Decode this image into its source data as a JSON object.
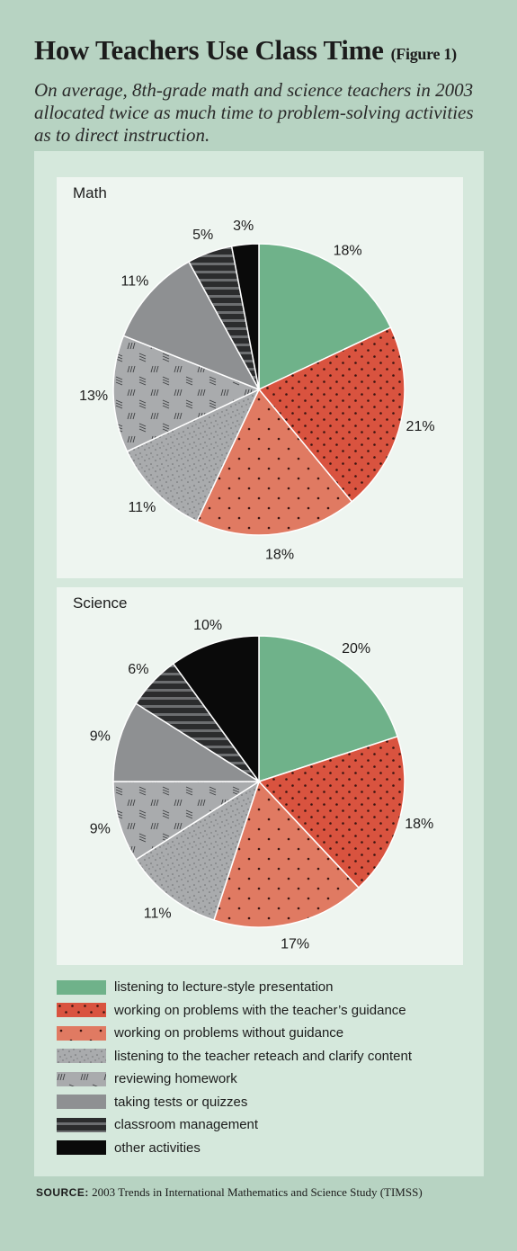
{
  "header": {
    "title": "How Teachers Use Class Time",
    "figure_label": "(Figure 1)",
    "subtitle": "On average, 8th-grade math and science teachers in 2003 allocated twice as much time to problem-solving activities as to direct instruction."
  },
  "colors": {
    "green": "#6fb28a",
    "red_dark": "#d9533f",
    "red_light": "#e07a62",
    "gray_light": "#a9abad",
    "gray_med": "#8e9092",
    "gray_dark": "#2f3132",
    "black": "#0a0a0a",
    "background": "#b7d3c2",
    "panel": "#d5e8dc",
    "chart_bg": "#eef5f0"
  },
  "legend": [
    {
      "label": "listening to lecture-style presentation",
      "pattern": "green"
    },
    {
      "label": "working on problems with the teacher’s guidance",
      "pattern": "red-dots-dense"
    },
    {
      "label": "working on problems without guidance",
      "pattern": "red-dots-sparse"
    },
    {
      "label": "listening to the teacher reteach and clarify content",
      "pattern": "gray-speckle"
    },
    {
      "label": "reviewing homework",
      "pattern": "gray-hatch"
    },
    {
      "label": "taking tests or quizzes",
      "pattern": "gray-solid"
    },
    {
      "label": "classroom management",
      "pattern": "dark-stripes"
    },
    {
      "label": "other activities",
      "pattern": "black"
    }
  ],
  "chart_data": [
    {
      "type": "pie",
      "title": "Math",
      "categories": [
        "listening to lecture-style presentation",
        "working on problems with the teacher’s guidance",
        "working on problems without guidance",
        "listening to the teacher reteach and clarify content",
        "reviewing homework",
        "taking tests or quizzes",
        "classroom management",
        "other activities"
      ],
      "values": [
        18,
        21,
        18,
        11,
        13,
        11,
        5,
        3
      ],
      "labels": [
        "18%",
        "21%",
        "18%",
        "11%",
        "13%",
        "11%",
        "5%",
        "3%"
      ]
    },
    {
      "type": "pie",
      "title": "Science",
      "categories": [
        "listening to lecture-style presentation",
        "working on problems with the teacher’s guidance",
        "working on problems without guidance",
        "listening to the teacher reteach and clarify content",
        "reviewing homework",
        "taking tests or quizzes",
        "classroom management",
        "other activities"
      ],
      "values": [
        20,
        18,
        17,
        11,
        9,
        9,
        6,
        10
      ],
      "labels": [
        "20%",
        "18%",
        "17%",
        "11%",
        "9%",
        "9%",
        "6%",
        "10%"
      ]
    }
  ],
  "source": {
    "label": "SOURCE:",
    "text": "2003 Trends in International Mathematics and Science Study (TIMSS)"
  }
}
